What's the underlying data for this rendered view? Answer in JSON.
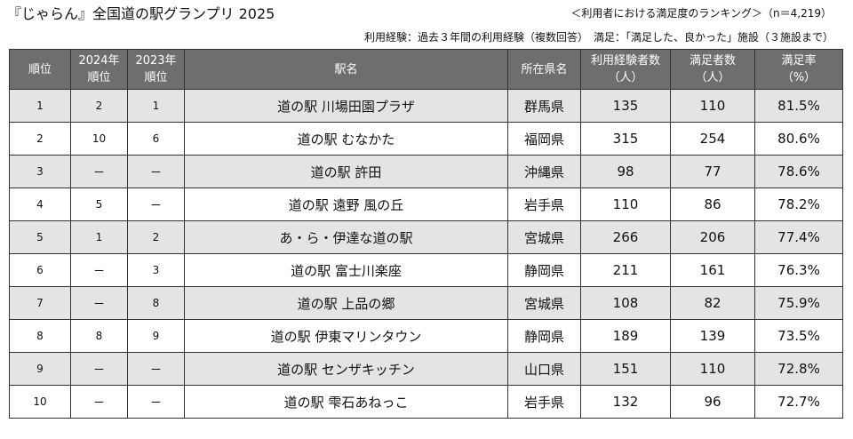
{
  "header": {
    "title": "『じゃらん』全国道の駅グランプリ 2025",
    "subtitle": "＜利用者における満足度のランキング＞（n＝4,219）",
    "note": "利用経験：過去３年間の利用経験（複数回答）　満足：「満足した、良かった」施設（３施設まで）"
  },
  "table": {
    "headers": {
      "rank": "順位",
      "prev2024_l1": "2024年",
      "prev2024_l2": "順位",
      "prev2023_l1": "2023年",
      "prev2023_l2": "順位",
      "name": "駅名",
      "pref": "所在県名",
      "users_l1": "利用経験者数",
      "users_l2": "（人）",
      "satisfied_l1": "満足者数",
      "satisfied_l2": "（人）",
      "rate_l1": "満足率",
      "rate_l2": "（%）"
    },
    "rows": [
      {
        "rank": "1",
        "prev2024": "2",
        "prev2023": "1",
        "name": "道の駅 川場田園プラザ",
        "pref": "群馬県",
        "users": "135",
        "satisfied": "110",
        "rate": "81.5%"
      },
      {
        "rank": "2",
        "prev2024": "10",
        "prev2023": "6",
        "name": "道の駅 むなかた",
        "pref": "福岡県",
        "users": "315",
        "satisfied": "254",
        "rate": "80.6%"
      },
      {
        "rank": "3",
        "prev2024": "ー",
        "prev2023": "ー",
        "name": "道の駅 許田",
        "pref": "沖縄県",
        "users": "98",
        "satisfied": "77",
        "rate": "78.6%"
      },
      {
        "rank": "4",
        "prev2024": "5",
        "prev2023": "ー",
        "name": "道の駅 遠野 風の丘",
        "pref": "岩手県",
        "users": "110",
        "satisfied": "86",
        "rate": "78.2%"
      },
      {
        "rank": "5",
        "prev2024": "1",
        "prev2023": "2",
        "name": "あ・ら・伊達な道の駅",
        "pref": "宮城県",
        "users": "266",
        "satisfied": "206",
        "rate": "77.4%"
      },
      {
        "rank": "6",
        "prev2024": "ー",
        "prev2023": "3",
        "name": "道の駅 富士川楽座",
        "pref": "静岡県",
        "users": "211",
        "satisfied": "161",
        "rate": "76.3%"
      },
      {
        "rank": "7",
        "prev2024": "ー",
        "prev2023": "8",
        "name": "道の駅 上品の郷",
        "pref": "宮城県",
        "users": "108",
        "satisfied": "82",
        "rate": "75.9%"
      },
      {
        "rank": "8",
        "prev2024": "8",
        "prev2023": "9",
        "name": "道の駅 伊東マリンタウン",
        "pref": "静岡県",
        "users": "189",
        "satisfied": "139",
        "rate": "73.5%"
      },
      {
        "rank": "9",
        "prev2024": "ー",
        "prev2023": "ー",
        "name": "道の駅 センザキッチン",
        "pref": "山口県",
        "users": "151",
        "satisfied": "110",
        "rate": "72.8%"
      },
      {
        "rank": "10",
        "prev2024": "ー",
        "prev2023": "ー",
        "name": "道の駅 雫石あねっこ",
        "pref": "岩手県",
        "users": "132",
        "satisfied": "96",
        "rate": "72.7%"
      }
    ]
  }
}
